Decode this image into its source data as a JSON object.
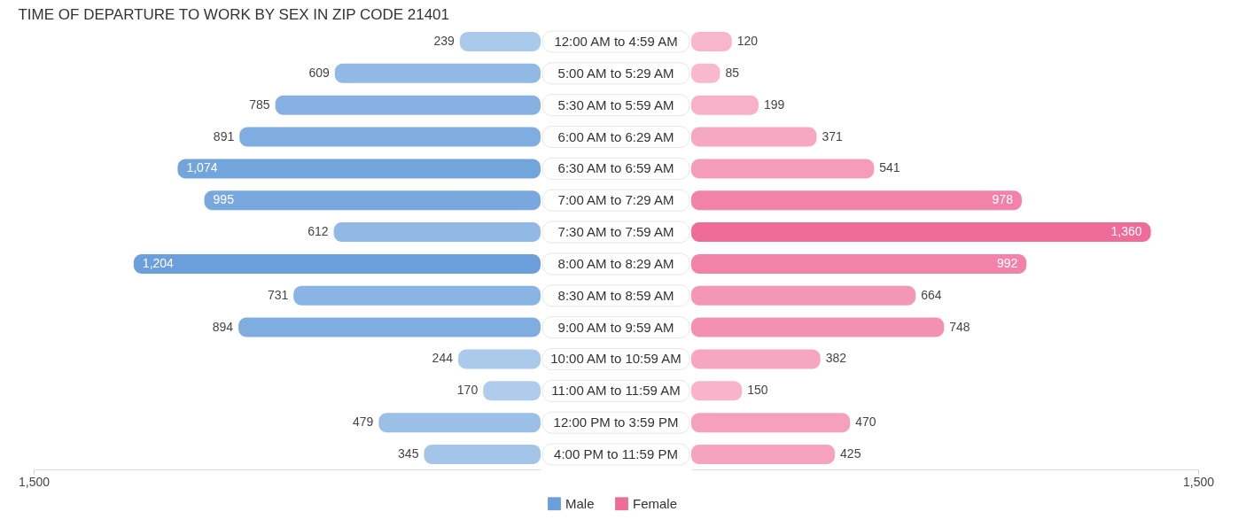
{
  "chart_data": [
    {
      "type": "bar",
      "orientation": "horizontal",
      "title": "TIME OF DEPARTURE TO WORK BY SEX IN ZIP CODE 21401",
      "categories": [
        "12:00 AM to 4:59 AM",
        "5:00 AM to 5:29 AM",
        "5:30 AM to 5:59 AM",
        "6:00 AM to 6:29 AM",
        "6:30 AM to 6:59 AM",
        "7:00 AM to 7:29 AM",
        "7:30 AM to 7:59 AM",
        "8:00 AM to 8:29 AM",
        "8:30 AM to 8:59 AM",
        "9:00 AM to 9:59 AM",
        "10:00 AM to 10:59 AM",
        "11:00 AM to 11:59 AM",
        "12:00 PM to 3:59 PM",
        "4:00 PM to 11:59 PM"
      ],
      "series": [
        {
          "name": "Male",
          "color": "#6a9fdb",
          "values": [
            239,
            609,
            785,
            891,
            1074,
            995,
            612,
            1204,
            731,
            894,
            244,
            170,
            479,
            345
          ],
          "value_labels": [
            "239",
            "609",
            "785",
            "891",
            "1,074",
            "995",
            "612",
            "1,204",
            "731",
            "894",
            "244",
            "170",
            "479",
            "345"
          ]
        }
      ],
      "xlim": [
        1500,
        0
      ],
      "xticks": [
        {
          "value": 1500,
          "label": "1,500"
        }
      ],
      "grid": false,
      "legend": "bottom"
    },
    {
      "type": "bar",
      "orientation": "horizontal",
      "categories": [
        null,
        null,
        null,
        null,
        null,
        null,
        null,
        null,
        null,
        null,
        null,
        null,
        null,
        null
      ],
      "series": [
        {
          "name": "Female",
          "color": "#f06c98",
          "values": [
            120,
            85,
            199,
            371,
            541,
            978,
            1360,
            992,
            664,
            748,
            382,
            150,
            470,
            425
          ],
          "value_labels": [
            "120",
            "85",
            "199",
            "371",
            "541",
            "978",
            "1,360",
            "992",
            "664",
            "748",
            "382",
            "150",
            "470",
            "425"
          ]
        }
      ],
      "xlim": [
        0,
        1500
      ],
      "xticks": [
        {
          "value": 1500,
          "label": "1,500"
        }
      ],
      "grid": false,
      "legend": "bottom"
    }
  ]
}
